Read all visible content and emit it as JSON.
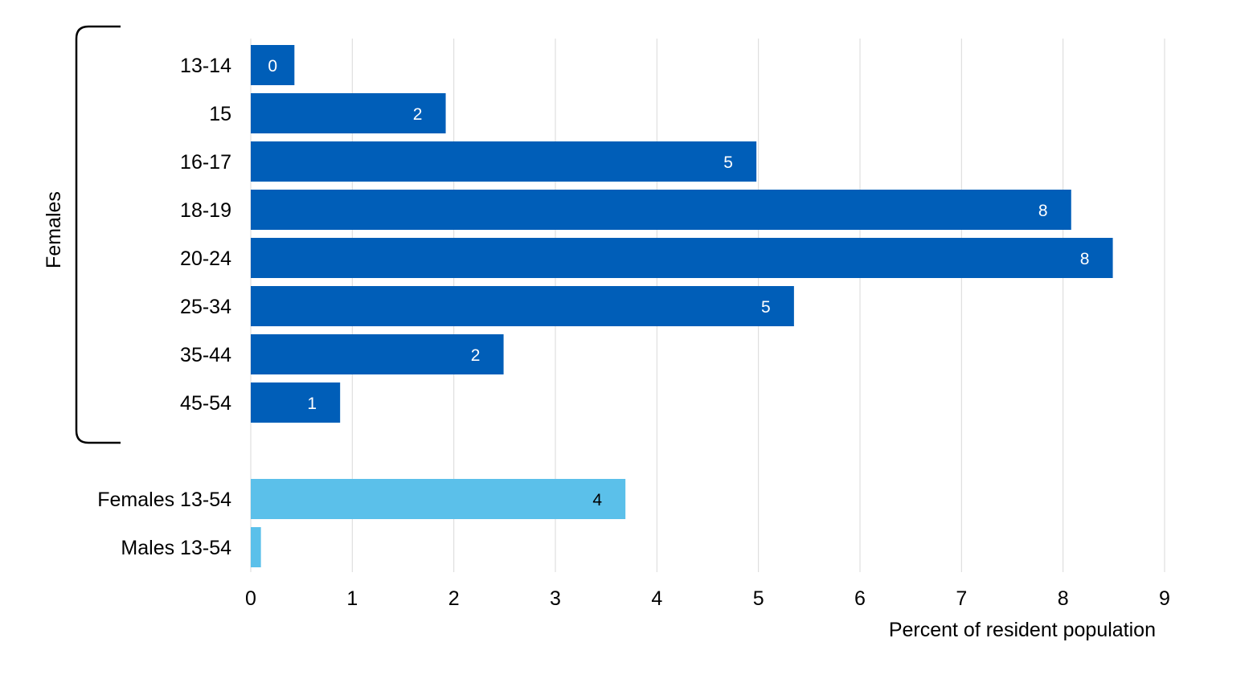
{
  "chart_data": {
    "type": "bar",
    "orientation": "horizontal",
    "categories": [
      "13-14",
      "15",
      "16-17",
      "18-19",
      "20-24",
      "25-34",
      "35-44",
      "45-54",
      "Females 13-54",
      "Males 13-54"
    ],
    "values": [
      0.43,
      1.92,
      4.98,
      8.08,
      8.49,
      5.35,
      2.49,
      0.88,
      3.69,
      0.1
    ],
    "data_labels": [
      "0",
      "2",
      "5",
      "8",
      "8",
      "5",
      "2",
      "1",
      "4",
      ""
    ],
    "group_label": "Females",
    "group_categories": [
      "13-14",
      "15",
      "16-17",
      "18-19",
      "20-24",
      "25-34",
      "35-44",
      "45-54"
    ],
    "xlabel": "Percent of resident population",
    "ylabel": "",
    "xlim": [
      0,
      9
    ],
    "x_ticks": [
      "0",
      "1",
      "2",
      "3",
      "4",
      "5",
      "6",
      "7",
      "8",
      "9"
    ],
    "grid": "vertical",
    "legend": "none",
    "colors": {
      "group_bars": "#005EB8",
      "total_bars": "#5BC0EA",
      "grid": "#D9D9D9",
      "text": "#000000",
      "label_on_dark": "#ffffff",
      "label_on_light": "#000000"
    }
  }
}
